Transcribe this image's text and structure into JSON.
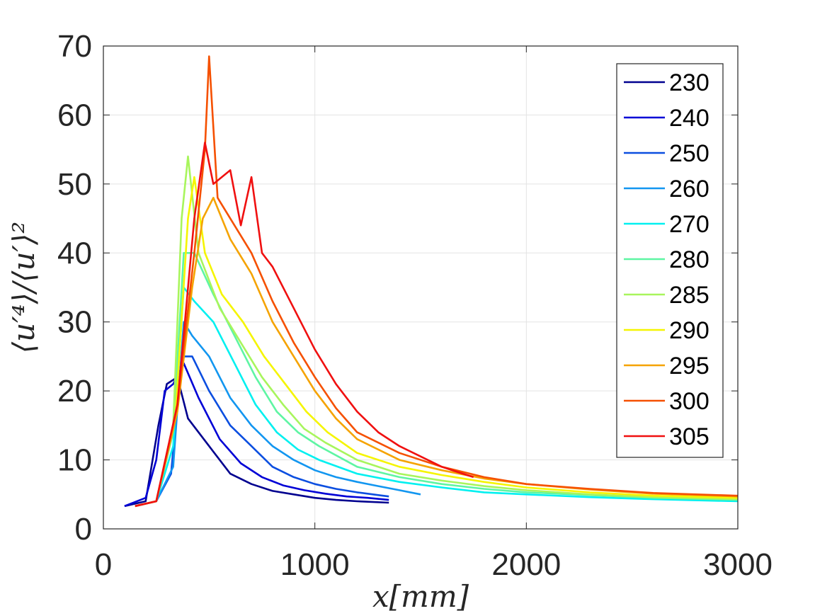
{
  "chart_data": {
    "type": "line",
    "xlabel": "x[mm]",
    "ylabel": "⟨u′⁴⟩/⟨u′⟩²",
    "xlim": [
      0,
      3000
    ],
    "ylim": [
      0,
      70
    ],
    "xticks": [
      "0",
      "1000",
      "2000",
      "3000"
    ],
    "yticks": [
      "0",
      "10",
      "20",
      "30",
      "40",
      "50",
      "60",
      "70"
    ],
    "grid": true,
    "legend_position": "top-right",
    "series": [
      {
        "name": "230",
        "color": "#00008f",
        "x": [
          100,
          200,
          260,
          300,
          350,
          400,
          500,
          600,
          700,
          800,
          900,
          1000,
          1100,
          1200,
          1350
        ],
        "y": [
          3.3,
          4,
          15,
          21,
          22,
          16,
          12,
          8,
          6.5,
          5.5,
          5,
          4.5,
          4.2,
          4,
          3.8
        ]
      },
      {
        "name": "240",
        "color": "#0000d6",
        "x": [
          100,
          200,
          250,
          290,
          330,
          380,
          450,
          550,
          650,
          750,
          850,
          950,
          1050,
          1150,
          1250,
          1350
        ],
        "y": [
          3.3,
          4.5,
          10,
          20,
          21,
          24,
          19,
          13,
          9.5,
          7.5,
          6.3,
          5.6,
          5.1,
          4.7,
          4.5,
          4.2
        ]
      },
      {
        "name": "250",
        "color": "#0b4ee0",
        "x": [
          150,
          250,
          320,
          370,
          420,
          500,
          600,
          700,
          800,
          900,
          1000,
          1100,
          1200,
          1300,
          1350
        ],
        "y": [
          3.3,
          4,
          8,
          25,
          25,
          20,
          15,
          12,
          9,
          7.5,
          6.5,
          5.8,
          5.3,
          4.9,
          4.7
        ]
      },
      {
        "name": "260",
        "color": "#1296f0",
        "x": [
          150,
          250,
          330,
          380,
          420,
          500,
          600,
          700,
          800,
          900,
          1000,
          1100,
          1200,
          1300,
          1400,
          1500
        ],
        "y": [
          3.3,
          4,
          9,
          30,
          28,
          25,
          19,
          15,
          12,
          10,
          8.5,
          7.5,
          6.8,
          6.2,
          5.6,
          5
        ]
      },
      {
        "name": "270",
        "color": "#00f0f0",
        "x": [
          150,
          250,
          330,
          380,
          430,
          520,
          620,
          720,
          820,
          920,
          1020,
          1200,
          1400,
          1600,
          1800,
          2000,
          2300,
          2600,
          3000
        ],
        "y": [
          3.3,
          4,
          12,
          35,
          33,
          30,
          24,
          18,
          14,
          11.5,
          10,
          8,
          6.8,
          6,
          5.3,
          5,
          4.6,
          4.3,
          4
        ]
      },
      {
        "name": "280",
        "color": "#5ef5a3",
        "x": [
          150,
          250,
          330,
          380,
          430,
          520,
          620,
          720,
          820,
          920,
          1020,
          1200,
          1400,
          1600,
          1800,
          2000,
          2300,
          2600,
          3000
        ],
        "y": [
          3.3,
          4,
          14,
          40,
          40,
          34,
          28,
          22,
          17,
          14,
          12,
          9,
          7.5,
          6.5,
          5.8,
          5.3,
          4.9,
          4.5,
          4.2
        ]
      },
      {
        "name": "285",
        "color": "#a8f55c",
        "x": [
          150,
          250,
          330,
          370,
          400,
          450,
          550,
          650,
          750,
          850,
          950,
          1050,
          1200,
          1400,
          1600,
          1800,
          2000,
          2300,
          2600,
          3000
        ],
        "y": [
          3.3,
          4,
          15,
          45,
          54,
          40,
          32,
          27,
          22,
          18,
          14.5,
          12.5,
          10,
          8,
          7,
          6.2,
          5.6,
          5,
          4.6,
          4.3
        ]
      },
      {
        "name": "290",
        "color": "#f5f500",
        "x": [
          150,
          250,
          340,
          400,
          430,
          480,
          560,
          660,
          760,
          860,
          960,
          1060,
          1200,
          1400,
          1600,
          1800,
          2000,
          2300,
          2600,
          3000
        ],
        "y": [
          3.3,
          4,
          16,
          45,
          51,
          40,
          34,
          30,
          25,
          21,
          17,
          14,
          11,
          9,
          7.8,
          6.8,
          6,
          5.3,
          4.8,
          4.5
        ]
      },
      {
        "name": "295",
        "color": "#f5a300",
        "x": [
          150,
          250,
          350,
          420,
          470,
          520,
          600,
          700,
          800,
          900,
          1000,
          1100,
          1200,
          1400,
          1600,
          1800,
          2000,
          2300,
          2600,
          3000
        ],
        "y": [
          3.3,
          4,
          17,
          35,
          45,
          48,
          42,
          37,
          30,
          25,
          20,
          16,
          13,
          10,
          8.5,
          7.3,
          6.5,
          5.7,
          5.1,
          4.7
        ]
      },
      {
        "name": "300",
        "color": "#f55000",
        "x": [
          150,
          250,
          350,
          430,
          480,
          500,
          540,
          600,
          700,
          800,
          900,
          1000,
          1100,
          1200,
          1400,
          1600,
          1800,
          2000,
          2300,
          2600,
          3000
        ],
        "y": [
          3.3,
          4,
          18,
          40,
          55,
          68.5,
          48,
          45,
          40,
          33,
          27,
          22,
          17.5,
          14,
          11,
          9,
          7.5,
          6.5,
          5.8,
          5.2,
          4.8
        ]
      },
      {
        "name": "305",
        "color": "#f01010",
        "x": [
          150,
          250,
          350,
          430,
          480,
          520,
          600,
          650,
          700,
          750,
          800,
          900,
          1000,
          1100,
          1200,
          1300,
          1400,
          1500,
          1600,
          1700,
          1750
        ],
        "y": [
          3.3,
          4,
          18,
          45,
          56,
          50,
          52,
          44,
          51,
          40,
          38,
          32,
          26,
          21,
          17,
          14,
          12,
          10.5,
          9,
          8,
          7.5
        ]
      }
    ]
  }
}
